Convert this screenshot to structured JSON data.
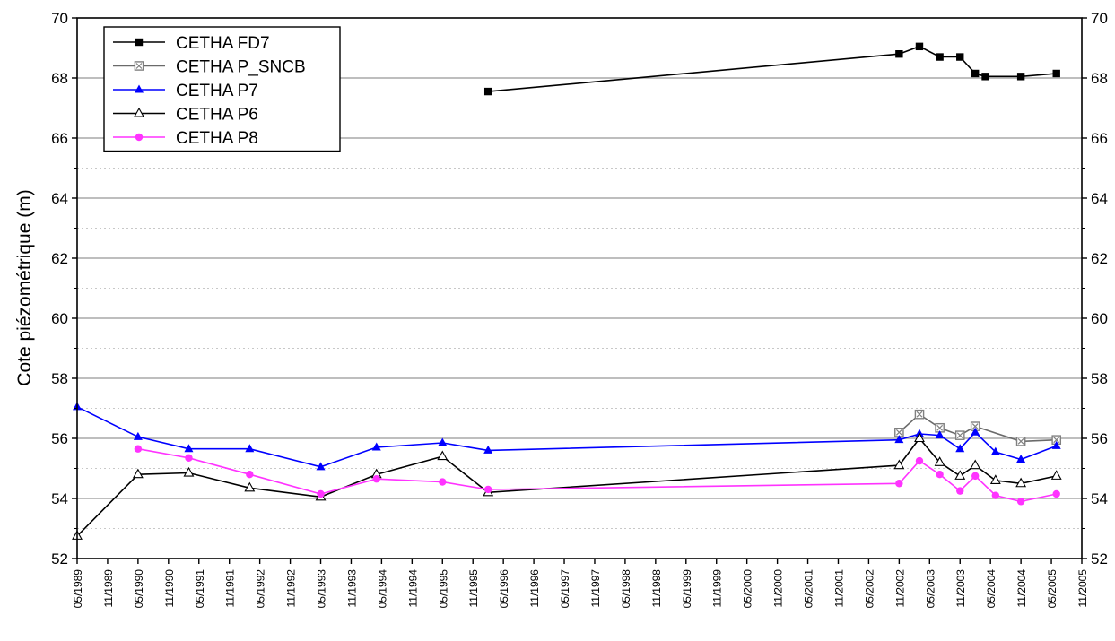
{
  "chart_data": {
    "type": "line",
    "title": "",
    "xlabel": "",
    "ylabel": "Cote piézométrique (m)",
    "ylim": [
      52,
      70
    ],
    "y_ticks": [
      52,
      54,
      56,
      58,
      60,
      62,
      64,
      66,
      68,
      70
    ],
    "y_tick_labels": [
      "52",
      "54",
      "56",
      "58",
      "60",
      "62",
      "64",
      "66",
      "68",
      "70"
    ],
    "x_range": [
      "1989-05",
      "2005-11"
    ],
    "x_tick_labels": [
      "05/1989",
      "11/1989",
      "05/1990",
      "11/1990",
      "05/1991",
      "11/1991",
      "05/1992",
      "11/1992",
      "05/1993",
      "11/1993",
      "05/1994",
      "11/1994",
      "05/1995",
      "11/1995",
      "05/1996",
      "11/1996",
      "05/1997",
      "11/1997",
      "05/1998",
      "11/1998",
      "05/1999",
      "11/1999",
      "05/2000",
      "11/2000",
      "05/2001",
      "11/2001",
      "05/2002",
      "11/2002",
      "05/2003",
      "11/2003",
      "05/2004",
      "11/2004",
      "05/2005",
      "11/2005"
    ],
    "grid": true,
    "legend_position": "top-left",
    "series": [
      {
        "name": "CETHA FD7",
        "color": "#000000",
        "marker": "filled-square",
        "x": [
          "1996-02",
          "2002-11",
          "2003-03",
          "2003-07",
          "2003-11",
          "2004-02",
          "2004-04",
          "2004-11",
          "2005-06"
        ],
        "y": [
          67.55,
          68.8,
          69.05,
          68.7,
          68.7,
          68.15,
          68.05,
          68.05,
          68.15
        ]
      },
      {
        "name": "CETHA P_SNCB",
        "color": "#808080",
        "marker": "boxed-x",
        "x": [
          "2002-11",
          "2003-03",
          "2003-07",
          "2003-11",
          "2004-02",
          "2004-11",
          "2005-06"
        ],
        "y": [
          56.2,
          56.8,
          56.35,
          56.1,
          56.4,
          55.9,
          55.95
        ]
      },
      {
        "name": "CETHA P7",
        "color": "#0000ff",
        "marker": "filled-triangle",
        "x": [
          "1989-05",
          "1990-05",
          "1991-03",
          "1992-03",
          "1993-05",
          "1994-04",
          "1995-05",
          "1996-02",
          "2002-11",
          "2003-03",
          "2003-07",
          "2003-11",
          "2004-02",
          "2004-06",
          "2004-11",
          "2005-06"
        ],
        "y": [
          57.05,
          56.05,
          55.65,
          55.65,
          55.05,
          55.7,
          55.85,
          55.6,
          55.95,
          56.15,
          56.1,
          55.65,
          56.2,
          55.55,
          55.3,
          55.75
        ]
      },
      {
        "name": "CETHA P6",
        "color": "#000000",
        "marker": "open-triangle",
        "x": [
          "1989-05",
          "1990-05",
          "1991-03",
          "1992-03",
          "1993-05",
          "1994-04",
          "1995-05",
          "1996-02",
          "2002-11",
          "2003-03",
          "2003-07",
          "2003-11",
          "2004-02",
          "2004-06",
          "2004-11",
          "2005-06"
        ],
        "y": [
          52.75,
          54.8,
          54.85,
          54.35,
          54.05,
          54.8,
          55.4,
          54.2,
          55.1,
          56.0,
          55.2,
          54.75,
          55.1,
          54.6,
          54.5,
          54.75
        ]
      },
      {
        "name": "CETHA P8",
        "color": "#ff33ff",
        "marker": "filled-circle",
        "x": [
          "1990-05",
          "1991-03",
          "1992-03",
          "1993-05",
          "1994-04",
          "1995-05",
          "1996-02",
          "2002-11",
          "2003-03",
          "2003-07",
          "2003-11",
          "2004-02",
          "2004-06",
          "2004-11",
          "2005-06"
        ],
        "y": [
          55.65,
          55.35,
          54.8,
          54.15,
          54.65,
          54.55,
          54.3,
          54.5,
          55.25,
          54.8,
          54.25,
          54.75,
          54.1,
          53.9,
          54.15
        ]
      }
    ]
  }
}
